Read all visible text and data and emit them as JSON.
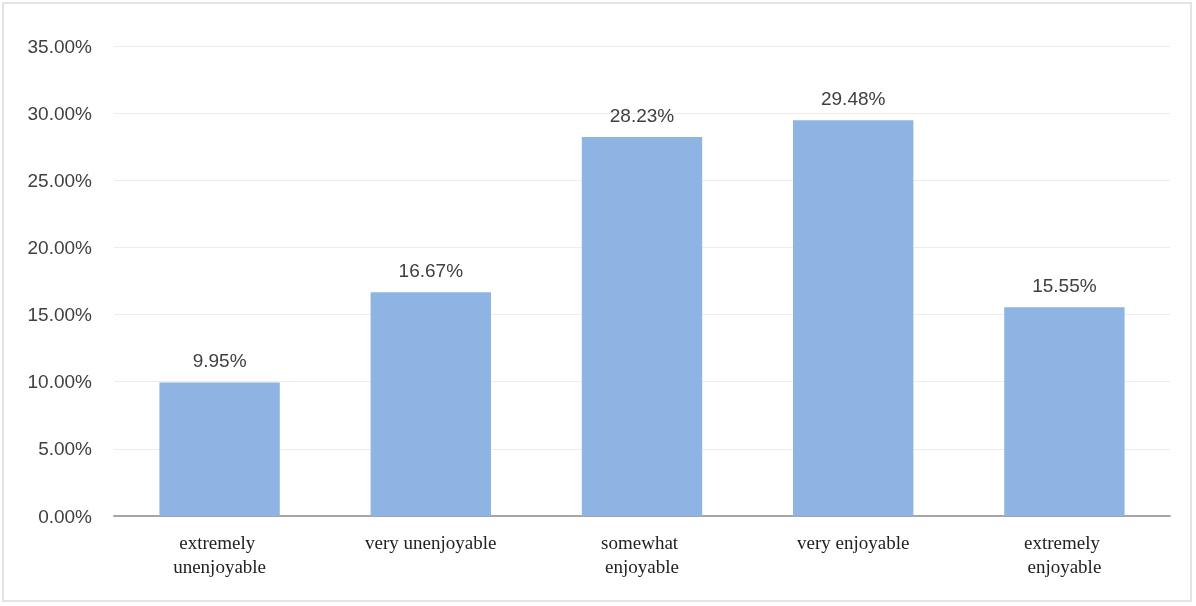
{
  "chart_data": {
    "type": "bar",
    "categories": [
      "extremely unenjoyable",
      "very unenjoyable",
      "somewhat enjoyable",
      "very enjoyable",
      "extremely enjoyable"
    ],
    "values": [
      9.95,
      16.67,
      28.23,
      29.48,
      15.55
    ],
    "value_labels": [
      "9.95%",
      "16.67%",
      "28.23%",
      "29.48%",
      "15.55%"
    ],
    "color": "#8db4e2",
    "ylim": [
      0,
      35
    ],
    "yticks": [
      {
        "value": 0,
        "label": "0.00%"
      },
      {
        "value": 5,
        "label": "5.00%"
      },
      {
        "value": 10,
        "label": "10.00%"
      },
      {
        "value": 15,
        "label": "15.00%"
      },
      {
        "value": 20,
        "label": "20.00%"
      },
      {
        "value": 25,
        "label": "25.00%"
      },
      {
        "value": 30,
        "label": "30.00%"
      },
      {
        "value": 35,
        "label": "35.00%"
      }
    ],
    "grid": "y"
  }
}
